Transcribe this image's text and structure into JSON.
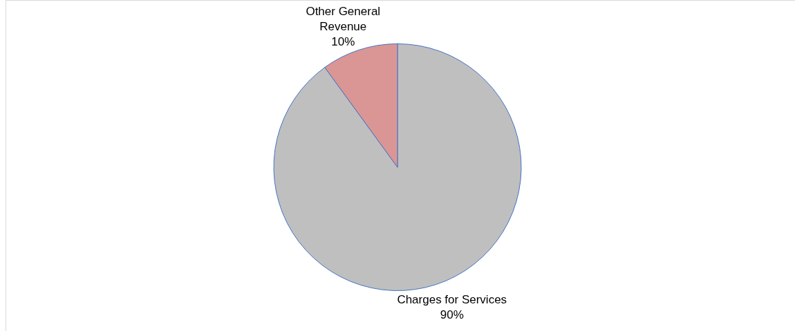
{
  "chart_data": {
    "type": "pie",
    "categories": [
      "Charges for Services",
      "Other General Revenue"
    ],
    "values": [
      90,
      10
    ],
    "colors": [
      "#bfbfbf",
      "#da9694"
    ],
    "value_labels": [
      "90%",
      "10%"
    ],
    "legend": false
  }
}
